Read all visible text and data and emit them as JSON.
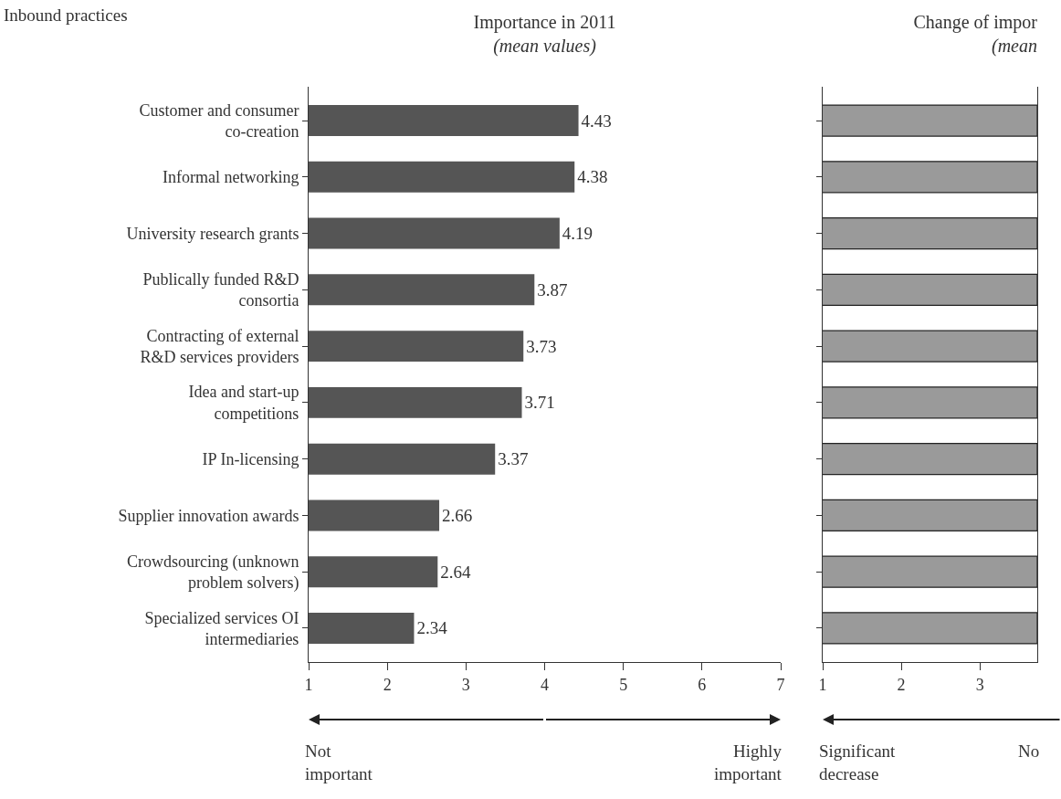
{
  "chart_data": [
    {
      "type": "bar",
      "orientation": "horizontal",
      "title": "Importance in 2011",
      "subtitle": "(mean values)",
      "categories": [
        "Customer and consumer co-creation",
        "Informal networking",
        "University research grants",
        "Publically funded R&D consortia",
        "Contracting of external R&D services providers",
        "Idea and start-up competitions",
        "IP In-licensing",
        "Supplier innovation awards",
        "Crowdsourcing (unknown problem solvers)",
        "Specialized services OI intermediaries"
      ],
      "values": [
        4.43,
        4.38,
        4.19,
        3.87,
        3.73,
        3.71,
        3.37,
        2.66,
        2.64,
        2.34
      ],
      "color": "#555555",
      "xlim": [
        1,
        7
      ],
      "xticks": [
        1,
        2,
        3,
        4,
        5,
        6,
        7
      ],
      "data_labels": true,
      "annotations": [
        "Inbound practices",
        "Not important",
        "Highly important"
      ]
    },
    {
      "type": "bar",
      "orientation": "horizontal",
      "title": "Change of impor",
      "subtitle": "(mean",
      "categories": [
        null,
        null,
        null,
        null,
        null,
        null,
        null,
        null,
        null,
        null
      ],
      "values": [
        3.73,
        3.73,
        3.73,
        3.73,
        3.73,
        3.73,
        3.73,
        3.73,
        3.73,
        3.73
      ],
      "color": "#9a9a9a",
      "xlim": [
        1,
        3.73
      ],
      "xticks": [
        1,
        2,
        3
      ],
      "tick_labels": "x",
      "annotations": [
        "Significant decrease",
        "No"
      ]
    }
  ]
}
